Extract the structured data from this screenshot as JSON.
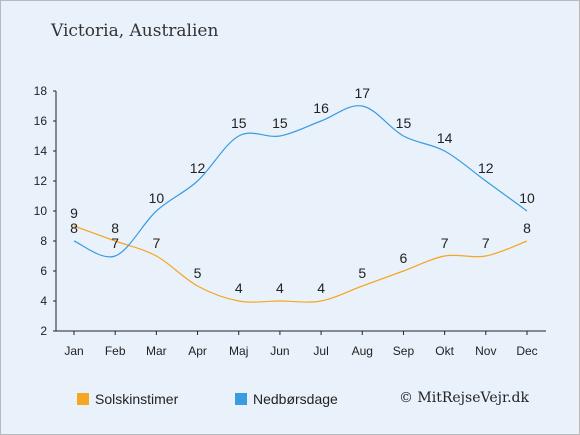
{
  "title": "Victoria, Australien",
  "credit": "© MitRejseVejr.dk",
  "chart_data": {
    "type": "line",
    "categories": [
      "Jan",
      "Feb",
      "Mar",
      "Apr",
      "Maj",
      "Jun",
      "Jul",
      "Aug",
      "Sep",
      "Okt",
      "Nov",
      "Dec"
    ],
    "ylim": [
      2,
      18
    ],
    "yticks": [
      2,
      4,
      6,
      8,
      10,
      12,
      14,
      16,
      18
    ],
    "grid": false,
    "legend_position": "bottom",
    "series": [
      {
        "name": "Solskinstimer",
        "color": "#f5a623",
        "values": [
          9,
          8,
          7,
          5,
          4,
          4,
          4,
          5,
          6,
          7,
          7,
          8
        ]
      },
      {
        "name": "Nedbørsdage",
        "color": "#3a9be0",
        "values": [
          8,
          7,
          10,
          12,
          15,
          15,
          16,
          17,
          15,
          14,
          12,
          10
        ]
      }
    ]
  }
}
